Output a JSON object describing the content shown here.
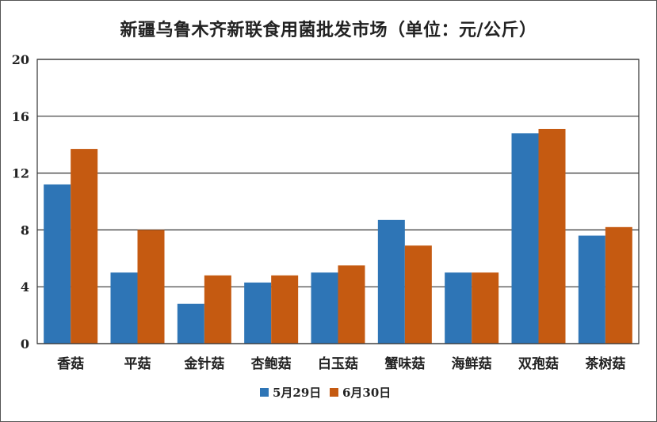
{
  "chart_data": {
    "type": "bar",
    "title": "新疆乌鲁木齐新联食用菌批发市场（单位：元/公斤）",
    "categories": [
      "香菇",
      "平菇",
      "金针菇",
      "杏鲍菇",
      "白玉菇",
      "蟹味菇",
      "海鲜菇",
      "双孢菇",
      "茶树菇"
    ],
    "series": [
      {
        "name": "5月29日",
        "color": "#2e75b6",
        "values": [
          11.2,
          5.0,
          2.8,
          4.3,
          5.0,
          8.7,
          5.0,
          14.8,
          7.6
        ]
      },
      {
        "name": "6月30日",
        "color": "#c55a11",
        "values": [
          13.7,
          8.0,
          4.8,
          4.8,
          5.5,
          6.9,
          5.0,
          15.1,
          8.2
        ]
      }
    ],
    "ylim": [
      0,
      20
    ],
    "yticks": [
      "0",
      "4",
      "8",
      "12",
      "16",
      "20"
    ],
    "grid": true,
    "legend_position": "bottom"
  }
}
